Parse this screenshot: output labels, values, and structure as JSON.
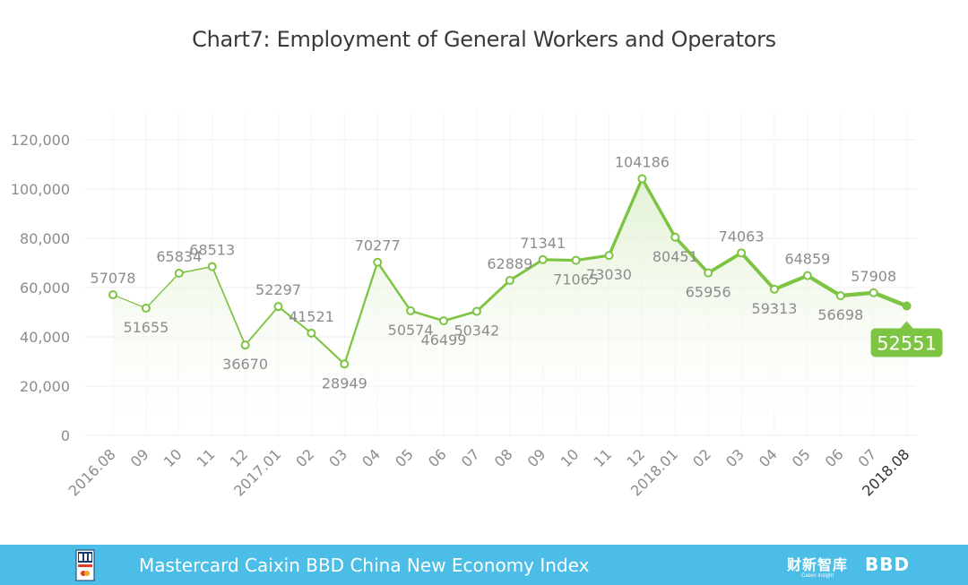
{
  "chart_data": {
    "type": "line",
    "title": "Chart7: Employment of General Workers and Operators",
    "categories": [
      "2016.08",
      "09",
      "10",
      "11",
      "12",
      "2017.01",
      "02",
      "03",
      "04",
      "05",
      "06",
      "07",
      "08",
      "09",
      "10",
      "11",
      "12",
      "2018.01",
      "02",
      "03",
      "04",
      "05",
      "06",
      "07",
      "2018.08"
    ],
    "values": [
      57078,
      51655,
      65834,
      68513,
      36670,
      52297,
      41521,
      28949,
      70277,
      50574,
      46499,
      50342,
      62889,
      71341,
      71065,
      73030,
      104186,
      80451,
      65956,
      74063,
      59313,
      64859,
      56698,
      57908,
      52551
    ],
    "value_labels": [
      "57078",
      "51655",
      "65834",
      "68513",
      "36670",
      "52297",
      "41521",
      "28949",
      "70277",
      "50574",
      "46499",
      "50342",
      "62889",
      "71341",
      "71065",
      "73030",
      "104186",
      "80451",
      "65956",
      "74063",
      "59313",
      "64859",
      "56698",
      "57908",
      "52551"
    ],
    "yticks": [
      "0",
      "20,000",
      "40,000",
      "60,000",
      "80,000",
      "100,000",
      "120,000"
    ],
    "ylim": [
      0,
      120000
    ],
    "grid": true,
    "last_value_label": "52551",
    "colors": {
      "line": "#7dc443",
      "area": "#e9f5de",
      "text": "#8c8c8c",
      "grid": "#eeeeee",
      "highlight": "#7dc443"
    }
  },
  "footer": {
    "title": "Mastercard Caixin BBD China New Economy Index",
    "caixin_cn": "财新智库",
    "caixin_en": "Caixin Insight",
    "bbd": "BBD",
    "bg_color": "#4bbde6"
  }
}
